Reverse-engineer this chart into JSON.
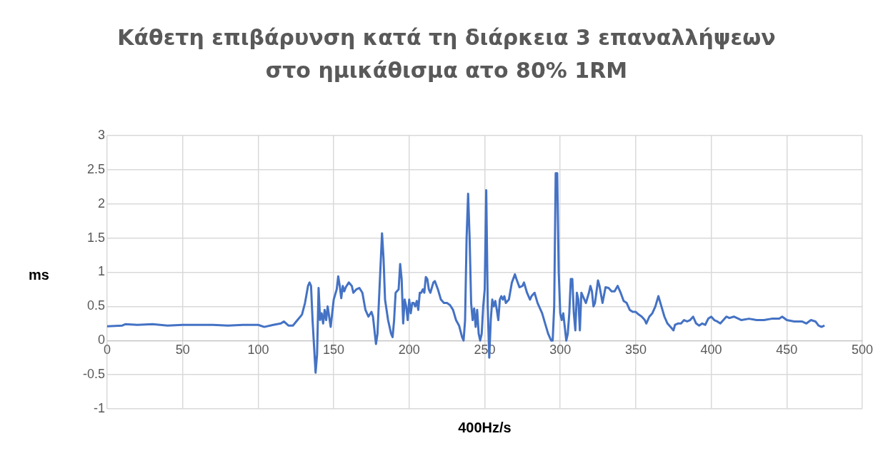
{
  "chart_data": {
    "type": "line",
    "title": "Κάθετη επιβάρυνση κατά τη διάρκεια 3 επαναλλήψεων στο ημικάθισμα ατο 80% 1RM",
    "xlabel": "400Hz/s",
    "ylabel": "ms",
    "xlim": [
      0,
      500
    ],
    "xticks": [
      0,
      50,
      100,
      150,
      200,
      250,
      300,
      350,
      400,
      450,
      500
    ],
    "ylim": [
      -1,
      3
    ],
    "yticks": [
      -1,
      -0.5,
      0,
      0.5,
      1,
      1.5,
      2,
      2.5,
      3
    ],
    "grid": true,
    "legend": false,
    "marker": "none",
    "line_style": "solid",
    "x": [
      0,
      10,
      12,
      20,
      30,
      40,
      50,
      60,
      70,
      80,
      90,
      100,
      104,
      110,
      115,
      117,
      120,
      123,
      126,
      129,
      131,
      133,
      134,
      135,
      136,
      138,
      139,
      140,
      141,
      142,
      143,
      144,
      145,
      146,
      148,
      150,
      152,
      153,
      154,
      155,
      156,
      157,
      158,
      160,
      162,
      163,
      165,
      167,
      169,
      171,
      173,
      175,
      176,
      178,
      179,
      180,
      182,
      183,
      184,
      186,
      188,
      189,
      190,
      191,
      193,
      194,
      195,
      196,
      197,
      198,
      199,
      200,
      201,
      202,
      203,
      204,
      205,
      206,
      207,
      208,
      209,
      210,
      211,
      212,
      213,
      214,
      216,
      217,
      219,
      221,
      223,
      225,
      227,
      229,
      231,
      233,
      235,
      236,
      237,
      238,
      239,
      240,
      241,
      242,
      243,
      244,
      245,
      246,
      247,
      248,
      249,
      250,
      251,
      252,
      253,
      254,
      255,
      256,
      257,
      258,
      259,
      260,
      261,
      262,
      263,
      264,
      266,
      268,
      270,
      271,
      273,
      275,
      276,
      278,
      280,
      281,
      283,
      285,
      287,
      288,
      290,
      292,
      294,
      295,
      296,
      297,
      298,
      299,
      300,
      301,
      302,
      303,
      304,
      305,
      306,
      307,
      308,
      309,
      310,
      311,
      312,
      313,
      314,
      316,
      317,
      319,
      320,
      321,
      322,
      323,
      325,
      326,
      328,
      330,
      332,
      334,
      336,
      338,
      340,
      342,
      344,
      346,
      348,
      350,
      352,
      354,
      356,
      357,
      359,
      361,
      363,
      365,
      367,
      369,
      371,
      373,
      375,
      376,
      378,
      380,
      382,
      384,
      386,
      388,
      390,
      392,
      394,
      396,
      398,
      400,
      402,
      404,
      406,
      408,
      410,
      412,
      415,
      420,
      425,
      430,
      435,
      440,
      445,
      447,
      450,
      455,
      460,
      463,
      466,
      469,
      471,
      473,
      475
    ],
    "series": [
      {
        "color": "#4472c4",
        "values": [
          0.21,
          0.22,
          0.24,
          0.23,
          0.24,
          0.22,
          0.23,
          0.23,
          0.23,
          0.22,
          0.23,
          0.23,
          0.2,
          0.23,
          0.25,
          0.28,
          0.22,
          0.22,
          0.3,
          0.38,
          0.55,
          0.8,
          0.85,
          0.8,
          0.3,
          -0.47,
          -0.2,
          0.77,
          0.3,
          0.4,
          0.25,
          0.45,
          0.3,
          0.5,
          0.2,
          0.6,
          0.75,
          0.94,
          0.8,
          0.62,
          0.8,
          0.72,
          0.78,
          0.85,
          0.8,
          0.7,
          0.75,
          0.77,
          0.7,
          0.45,
          0.35,
          0.42,
          0.35,
          -0.05,
          0.1,
          0.6,
          1.57,
          1.2,
          0.6,
          0.3,
          0.1,
          0.05,
          0.3,
          0.7,
          0.75,
          1.12,
          0.9,
          0.25,
          0.6,
          0.5,
          0.3,
          0.6,
          0.4,
          0.55,
          0.55,
          0.5,
          0.58,
          0.45,
          0.7,
          0.7,
          0.75,
          0.7,
          0.93,
          0.9,
          0.75,
          0.7,
          0.85,
          0.87,
          0.75,
          0.6,
          0.55,
          0.55,
          0.52,
          0.45,
          0.3,
          0.22,
          0.05,
          0,
          0.3,
          1.5,
          2.15,
          1.5,
          0.55,
          0.3,
          0.47,
          0.2,
          0.45,
          0.1,
          0,
          0.1,
          0.5,
          0.75,
          2.2,
          0.5,
          -0.25,
          0.3,
          0.6,
          0.5,
          0.58,
          0.45,
          0.3,
          0.6,
          0.65,
          0.6,
          0.65,
          0.55,
          0.6,
          0.85,
          0.97,
          0.9,
          0.78,
          0.8,
          0.85,
          0.7,
          0.6,
          0.65,
          0.7,
          0.55,
          0.45,
          0.4,
          0.25,
          0.1,
          0,
          0,
          0.5,
          2.45,
          2.45,
          1,
          0.4,
          0.3,
          0.4,
          0.2,
          0,
          0.1,
          0.4,
          0.9,
          0.9,
          0.4,
          0.15,
          0.7,
          0.6,
          0.15,
          0.7,
          0.6,
          0.55,
          0.7,
          0.8,
          0.72,
          0.5,
          0.55,
          0.88,
          0.8,
          0.55,
          0.78,
          0.77,
          0.72,
          0.72,
          0.8,
          0.7,
          0.58,
          0.55,
          0.45,
          0.42,
          0.42,
          0.38,
          0.35,
          0.3,
          0.25,
          0.35,
          0.4,
          0.5,
          0.65,
          0.5,
          0.35,
          0.25,
          0.2,
          0.15,
          0.23,
          0.25,
          0.25,
          0.3,
          0.28,
          0.3,
          0.35,
          0.25,
          0.22,
          0.25,
          0.23,
          0.32,
          0.35,
          0.3,
          0.28,
          0.25,
          0.3,
          0.35,
          0.33,
          0.35,
          0.3,
          0.32,
          0.3,
          0.3,
          0.32,
          0.32,
          0.35,
          0.3,
          0.28,
          0.28,
          0.25,
          0.3,
          0.28,
          0.22,
          0.2,
          0.22
        ]
      }
    ]
  }
}
